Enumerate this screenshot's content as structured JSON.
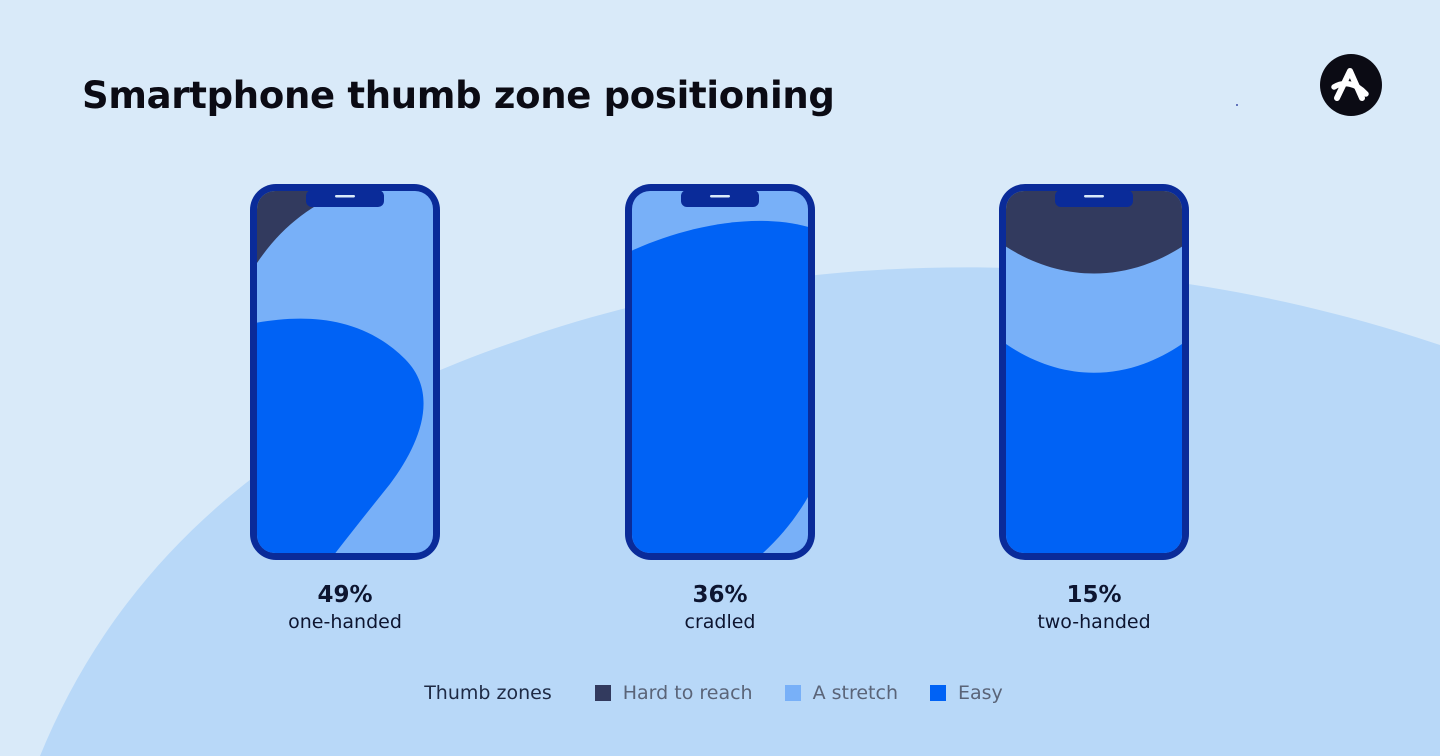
{
  "title": "Smartphone thumb zone positioning",
  "colors": {
    "background": "#d9eaf9",
    "arc": "#b8d8f8",
    "phone_frame": "#0a2b99",
    "hard": "#323a5e",
    "stretch": "#78b0f8",
    "easy": "#0062f5"
  },
  "chart_data": {
    "type": "diagram",
    "title": "Smartphone thumb zone positioning",
    "series": [
      {
        "name": "one-handed",
        "percent": 49,
        "label": "49%"
      },
      {
        "name": "cradled",
        "percent": 36,
        "label": "36%"
      },
      {
        "name": "two-handed",
        "percent": 15,
        "label": "15%"
      }
    ],
    "legend": {
      "title": "Thumb zones",
      "items": [
        {
          "name": "Hard to reach",
          "color": "#323a5e"
        },
        {
          "name": "A stretch",
          "color": "#78b0f8"
        },
        {
          "name": "Easy",
          "color": "#0062f5"
        }
      ]
    }
  }
}
